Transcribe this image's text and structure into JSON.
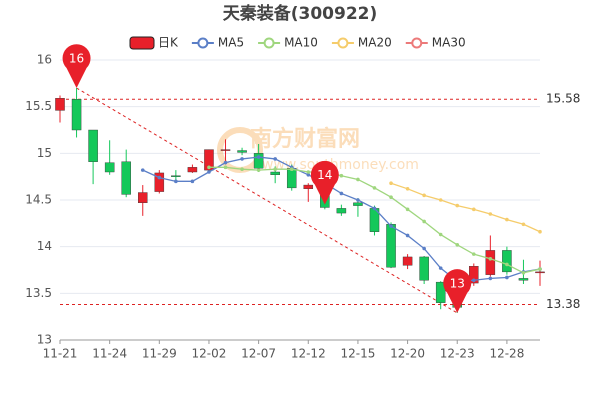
{
  "chart_data": {
    "type": "candlestick",
    "title": "天秦装备(300922)",
    "watermark": "南方财富网",
    "watermark_sub": "www.southmoney.com",
    "categories": [
      "11-21",
      null,
      null,
      "11-24",
      null,
      null,
      "11-29",
      null,
      null,
      "12-02",
      null,
      null,
      "12-07",
      null,
      null,
      "12-12",
      null,
      null,
      "12-15",
      null,
      null,
      "12-20",
      null,
      null,
      "12-23",
      null,
      null,
      "12-28",
      null,
      null
    ],
    "candles": {
      "name": "日K",
      "up_color": "#e8202a",
      "down_color": "#14c85a",
      "open": [
        15.46,
        15.58,
        15.25,
        14.9,
        14.91,
        14.47,
        14.59,
        14.76,
        14.8,
        14.82,
        15.03,
        15.03,
        15.0,
        14.8,
        14.84,
        14.62,
        14.68,
        14.41,
        14.47,
        14.41,
        14.24,
        13.8,
        13.89,
        13.62,
        13.47,
        13.61,
        13.7,
        13.96,
        13.66,
        13.72
      ],
      "high": [
        15.62,
        15.7,
        15.25,
        15.14,
        15.04,
        14.66,
        14.82,
        14.82,
        14.88,
        15.04,
        15.15,
        15.06,
        15.1,
        14.86,
        14.88,
        14.68,
        14.7,
        14.45,
        14.52,
        14.44,
        14.26,
        13.92,
        13.9,
        13.63,
        13.5,
        13.82,
        14.12,
        14.0,
        13.86,
        13.85
      ],
      "low": [
        15.33,
        15.17,
        14.67,
        14.77,
        14.53,
        14.33,
        14.57,
        14.7,
        14.79,
        14.79,
        14.88,
        14.98,
        14.8,
        14.68,
        14.6,
        14.48,
        14.4,
        14.33,
        14.32,
        14.12,
        13.77,
        13.76,
        13.6,
        13.33,
        13.29,
        13.58,
        13.68,
        13.7,
        13.6,
        13.58
      ],
      "close": [
        15.59,
        15.25,
        14.91,
        14.8,
        14.56,
        14.58,
        14.79,
        14.75,
        14.85,
        15.04,
        15.04,
        15.01,
        14.84,
        14.77,
        14.63,
        14.66,
        14.42,
        14.36,
        14.44,
        14.16,
        13.78,
        13.89,
        13.64,
        13.4,
        13.35,
        13.79,
        13.96,
        13.73,
        13.64,
        13.73
      ]
    },
    "series": [
      {
        "name": "MA5",
        "color": "#5b7fc7",
        "values": [
          null,
          null,
          null,
          null,
          null,
          14.82,
          14.74,
          14.7,
          14.7,
          14.8,
          14.9,
          14.94,
          14.96,
          14.94,
          14.85,
          14.77,
          14.68,
          14.57,
          14.5,
          14.41,
          14.22,
          14.12,
          13.98,
          13.77,
          13.63,
          13.64,
          13.66,
          13.67,
          13.73,
          13.76
        ]
      },
      {
        "name": "MA10",
        "color": "#9fd67e",
        "values": [
          null,
          null,
          null,
          null,
          null,
          null,
          null,
          null,
          null,
          14.85,
          14.85,
          14.83,
          14.82,
          14.83,
          14.83,
          14.8,
          14.8,
          14.76,
          14.72,
          14.63,
          14.53,
          14.4,
          14.27,
          14.13,
          14.02,
          13.92,
          13.87,
          13.81,
          13.72,
          13.76
        ]
      },
      {
        "name": "MA20",
        "color": "#f5cc6b",
        "values": [
          null,
          null,
          null,
          null,
          null,
          null,
          null,
          null,
          null,
          null,
          null,
          null,
          null,
          null,
          null,
          null,
          null,
          null,
          null,
          null,
          14.68,
          14.62,
          14.55,
          14.5,
          14.44,
          14.4,
          14.35,
          14.29,
          14.24,
          14.16
        ]
      },
      {
        "name": "MA30",
        "color": "#ec7a7a",
        "values": [
          null,
          null,
          null,
          null,
          null,
          null,
          null,
          null,
          null,
          null,
          null,
          null,
          null,
          null,
          null,
          null,
          null,
          null,
          null,
          null,
          null,
          null,
          null,
          null,
          null,
          null,
          null,
          null,
          null,
          null
        ]
      }
    ],
    "annotations": [
      {
        "index": 1,
        "value": 15.7,
        "label": "16"
      },
      {
        "index": 16,
        "value": 14.45,
        "label": "14"
      },
      {
        "index": 24,
        "value": 13.29,
        "label": "13"
      }
    ],
    "hlines": [
      {
        "value": 15.58,
        "label": "15.58"
      },
      {
        "value": 13.38,
        "label": "13.38"
      }
    ],
    "ylim": [
      13,
      16
    ],
    "yticks": [
      13,
      13.5,
      14,
      14.5,
      15,
      15.5,
      16
    ],
    "grid": true
  }
}
